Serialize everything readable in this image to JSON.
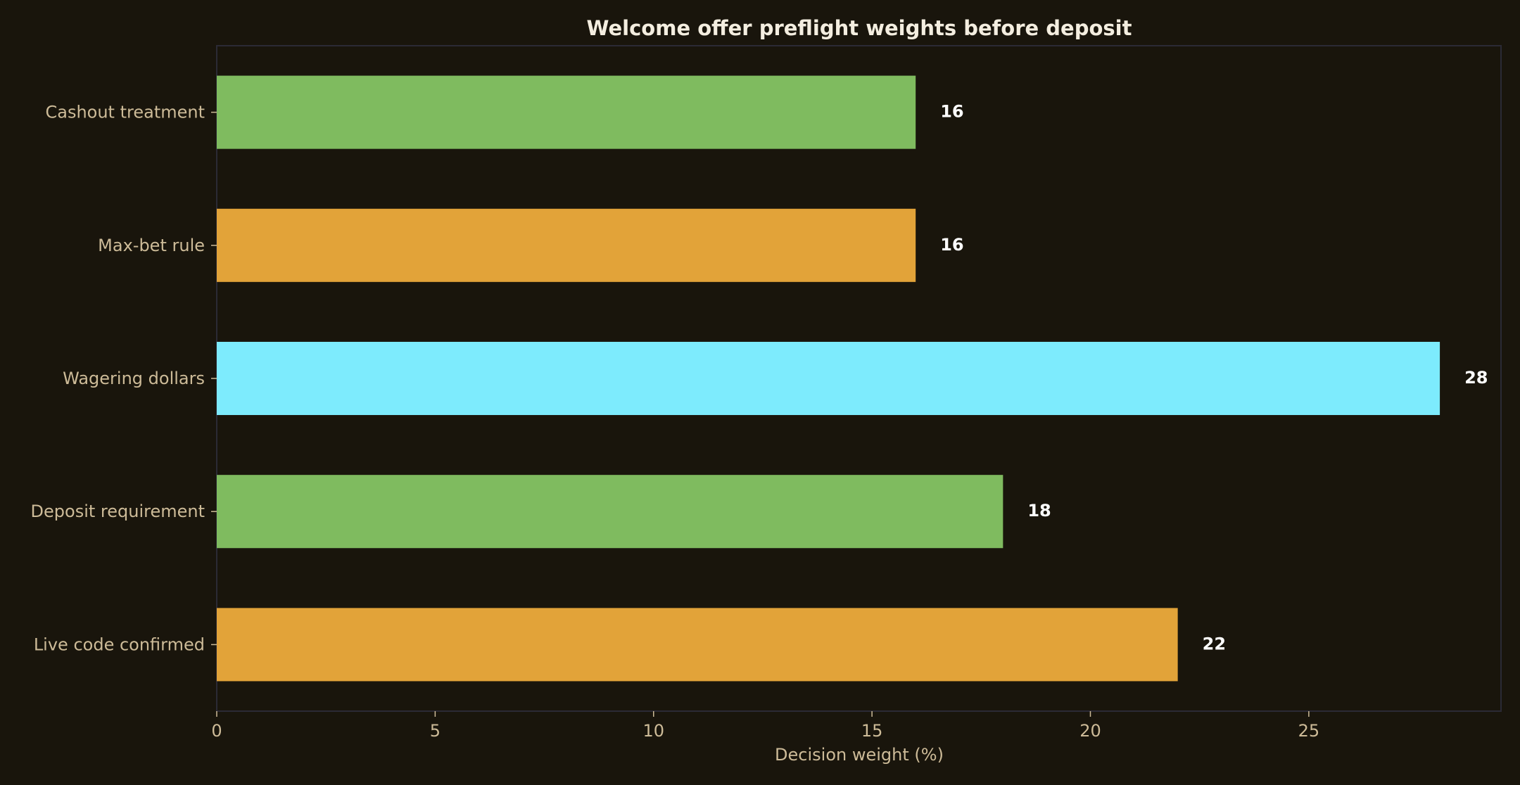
{
  "chart_data": {
    "type": "bar",
    "orientation": "horizontal",
    "title": "Welcome offer preflight weights before deposit",
    "xlabel": "Decision weight (%)",
    "ylabel": "",
    "xlim": [
      0,
      29.4
    ],
    "xticks": [
      0,
      5,
      10,
      15,
      20,
      25
    ],
    "xtick_labels": [
      "0",
      "5",
      "10",
      "15",
      "20",
      "25"
    ],
    "grid": false,
    "categories": [
      "Cashout treatment",
      "Max-bet rule",
      "Wagering dollars",
      "Deposit requirement",
      "Live code confirmed"
    ],
    "values": [
      16,
      16,
      28,
      18,
      22
    ],
    "value_labels": [
      "16",
      "16",
      "28",
      "18",
      "22"
    ],
    "colors": [
      "#7fbb5f",
      "#e2a339",
      "#7debfd",
      "#7fbb5f",
      "#e2a339"
    ]
  },
  "theme": {
    "background": "#19150c",
    "frame": "#2b2a35",
    "tick_color": "#cdbb98"
  }
}
